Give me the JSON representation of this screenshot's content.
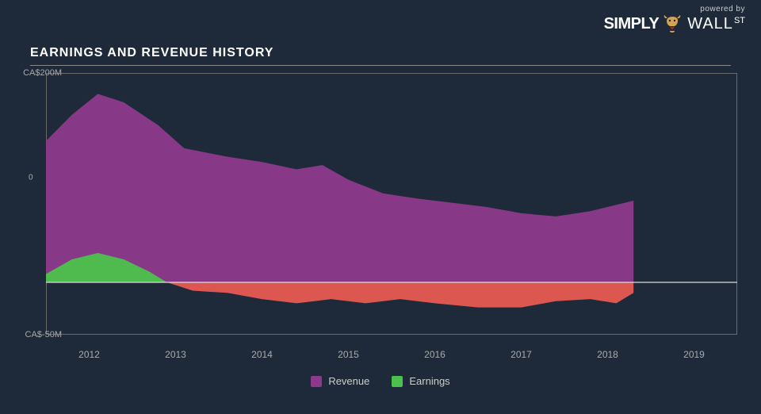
{
  "branding": {
    "powered_by": "powered by",
    "simply": "SIMPLY",
    "wall": "WALL",
    "st": "ST"
  },
  "title": "EARNINGS AND REVENUE HISTORY",
  "chart": {
    "type": "area",
    "background_color": "#1e2a3a",
    "plot_border_color": "#6a6a6a",
    "grid_color": "#555555",
    "axis_text_color": "#aaaaaa",
    "ylim": [
      -50,
      200
    ],
    "y_ticks": [
      {
        "value": 200,
        "label": "CA$200M"
      },
      {
        "value": -50,
        "label": "CA$-50M"
      }
    ],
    "y_mid_hint": "0",
    "xlim": [
      2011.5,
      2019.5
    ],
    "x_ticks": [
      2012,
      2013,
      2014,
      2015,
      2016,
      2017,
      2018,
      2019
    ],
    "zero_line_color": "#dddddd",
    "series": [
      {
        "name": "Revenue",
        "color": "#8d3a8c",
        "fill_opacity": 0.95,
        "points": [
          {
            "x": 2011.5,
            "y": 135
          },
          {
            "x": 2011.8,
            "y": 160
          },
          {
            "x": 2012.1,
            "y": 180
          },
          {
            "x": 2012.4,
            "y": 172
          },
          {
            "x": 2012.8,
            "y": 150
          },
          {
            "x": 2013.1,
            "y": 128
          },
          {
            "x": 2013.6,
            "y": 120
          },
          {
            "x": 2014.0,
            "y": 115
          },
          {
            "x": 2014.4,
            "y": 108
          },
          {
            "x": 2014.7,
            "y": 112
          },
          {
            "x": 2015.0,
            "y": 98
          },
          {
            "x": 2015.4,
            "y": 85
          },
          {
            "x": 2015.8,
            "y": 80
          },
          {
            "x": 2016.2,
            "y": 76
          },
          {
            "x": 2016.6,
            "y": 72
          },
          {
            "x": 2017.0,
            "y": 66
          },
          {
            "x": 2017.4,
            "y": 63
          },
          {
            "x": 2017.8,
            "y": 68
          },
          {
            "x": 2018.3,
            "y": 78
          }
        ]
      },
      {
        "name": "Earnings",
        "positive_color": "#4cc24c",
        "negative_color": "#e85a52",
        "fill_opacity": 0.95,
        "points": [
          {
            "x": 2011.5,
            "y": 8
          },
          {
            "x": 2011.8,
            "y": 22
          },
          {
            "x": 2012.1,
            "y": 28
          },
          {
            "x": 2012.4,
            "y": 22
          },
          {
            "x": 2012.7,
            "y": 10
          },
          {
            "x": 2012.9,
            "y": 0
          },
          {
            "x": 2013.2,
            "y": -8
          },
          {
            "x": 2013.6,
            "y": -10
          },
          {
            "x": 2014.0,
            "y": -16
          },
          {
            "x": 2014.4,
            "y": -20
          },
          {
            "x": 2014.8,
            "y": -16
          },
          {
            "x": 2015.2,
            "y": -20
          },
          {
            "x": 2015.6,
            "y": -16
          },
          {
            "x": 2016.0,
            "y": -20
          },
          {
            "x": 2016.5,
            "y": -24
          },
          {
            "x": 2017.0,
            "y": -24
          },
          {
            "x": 2017.4,
            "y": -18
          },
          {
            "x": 2017.8,
            "y": -16
          },
          {
            "x": 2018.1,
            "y": -20
          },
          {
            "x": 2018.3,
            "y": -10
          }
        ]
      }
    ],
    "legend": [
      {
        "label": "Revenue",
        "color": "#8d3a8c"
      },
      {
        "label": "Earnings",
        "color": "#4cc24c"
      }
    ]
  }
}
